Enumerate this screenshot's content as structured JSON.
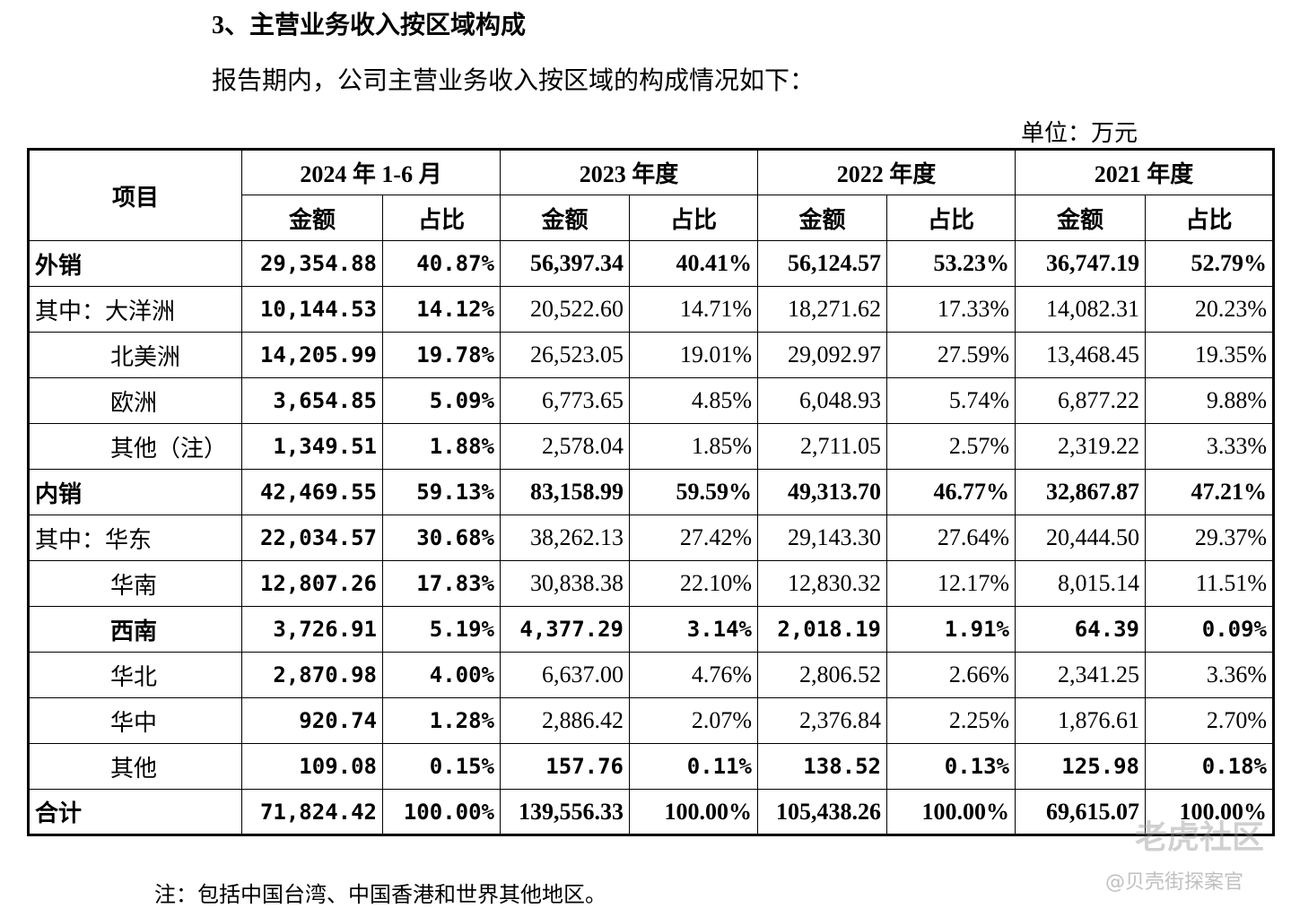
{
  "header": {
    "section_title": "3、主营业务收入按区域构成",
    "intro": "报告期内，公司主营业务收入按区域的构成情况如下：",
    "unit": "单位：万元"
  },
  "table": {
    "item_header": "项目",
    "periods": [
      "2024 年 1-6 月",
      "2023 年度",
      "2022 年度",
      "2021 年度"
    ],
    "subheaders": [
      "金额",
      "占比",
      "金额",
      "占比",
      "金额",
      "占比",
      "金额",
      "占比"
    ],
    "rows": [
      [
        "外销",
        "29,354.88",
        "40.87%",
        "56,397.34",
        "40.41%",
        "56,124.57",
        "53.23%",
        "36,747.19",
        "52.79%"
      ],
      [
        "其中：大洋洲",
        "10,144.53",
        "14.12%",
        "20,522.60",
        "14.71%",
        "18,271.62",
        "17.33%",
        "14,082.31",
        "20.23%"
      ],
      [
        "北美洲",
        "14,205.99",
        "19.78%",
        "26,523.05",
        "19.01%",
        "29,092.97",
        "27.59%",
        "13,468.45",
        "19.35%"
      ],
      [
        "欧洲",
        "3,654.85",
        "5.09%",
        "6,773.65",
        "4.85%",
        "6,048.93",
        "5.74%",
        "6,877.22",
        "9.88%"
      ],
      [
        "其他（注）",
        "1,349.51",
        "1.88%",
        "2,578.04",
        "1.85%",
        "2,711.05",
        "2.57%",
        "2,319.22",
        "3.33%"
      ],
      [
        "内销",
        "42,469.55",
        "59.13%",
        "83,158.99",
        "59.59%",
        "49,313.70",
        "46.77%",
        "32,867.87",
        "47.21%"
      ],
      [
        "其中：华东",
        "22,034.57",
        "30.68%",
        "38,262.13",
        "27.42%",
        "29,143.30",
        "27.64%",
        "20,444.50",
        "29.37%"
      ],
      [
        "华南",
        "12,807.26",
        "17.83%",
        "30,838.38",
        "22.10%",
        "12,830.32",
        "12.17%",
        "8,015.14",
        "11.51%"
      ],
      [
        "西南",
        "3,726.91",
        "5.19%",
        "4,377.29",
        "3.14%",
        "2,018.19",
        "1.91%",
        "64.39",
        "0.09%"
      ],
      [
        "华北",
        "2,870.98",
        "4.00%",
        "6,637.00",
        "4.76%",
        "2,806.52",
        "2.66%",
        "2,341.25",
        "3.36%"
      ],
      [
        "华中",
        "920.74",
        "1.28%",
        "2,886.42",
        "2.07%",
        "2,376.84",
        "2.25%",
        "1,876.61",
        "2.70%"
      ],
      [
        "其他",
        "109.08",
        "0.15%",
        "157.76",
        "0.11%",
        "138.52",
        "0.13%",
        "125.98",
        "0.18%"
      ],
      [
        "合计",
        "71,824.42",
        "100.00%",
        "139,556.33",
        "100.00%",
        "105,438.26",
        "100.00%",
        "69,615.07",
        "100.00%"
      ]
    ]
  },
  "note": "注：包括中国台湾、中国香港和世界其他地区。",
  "watermark": [
    "老虎社区",
    "@贝壳街探案官"
  ]
}
